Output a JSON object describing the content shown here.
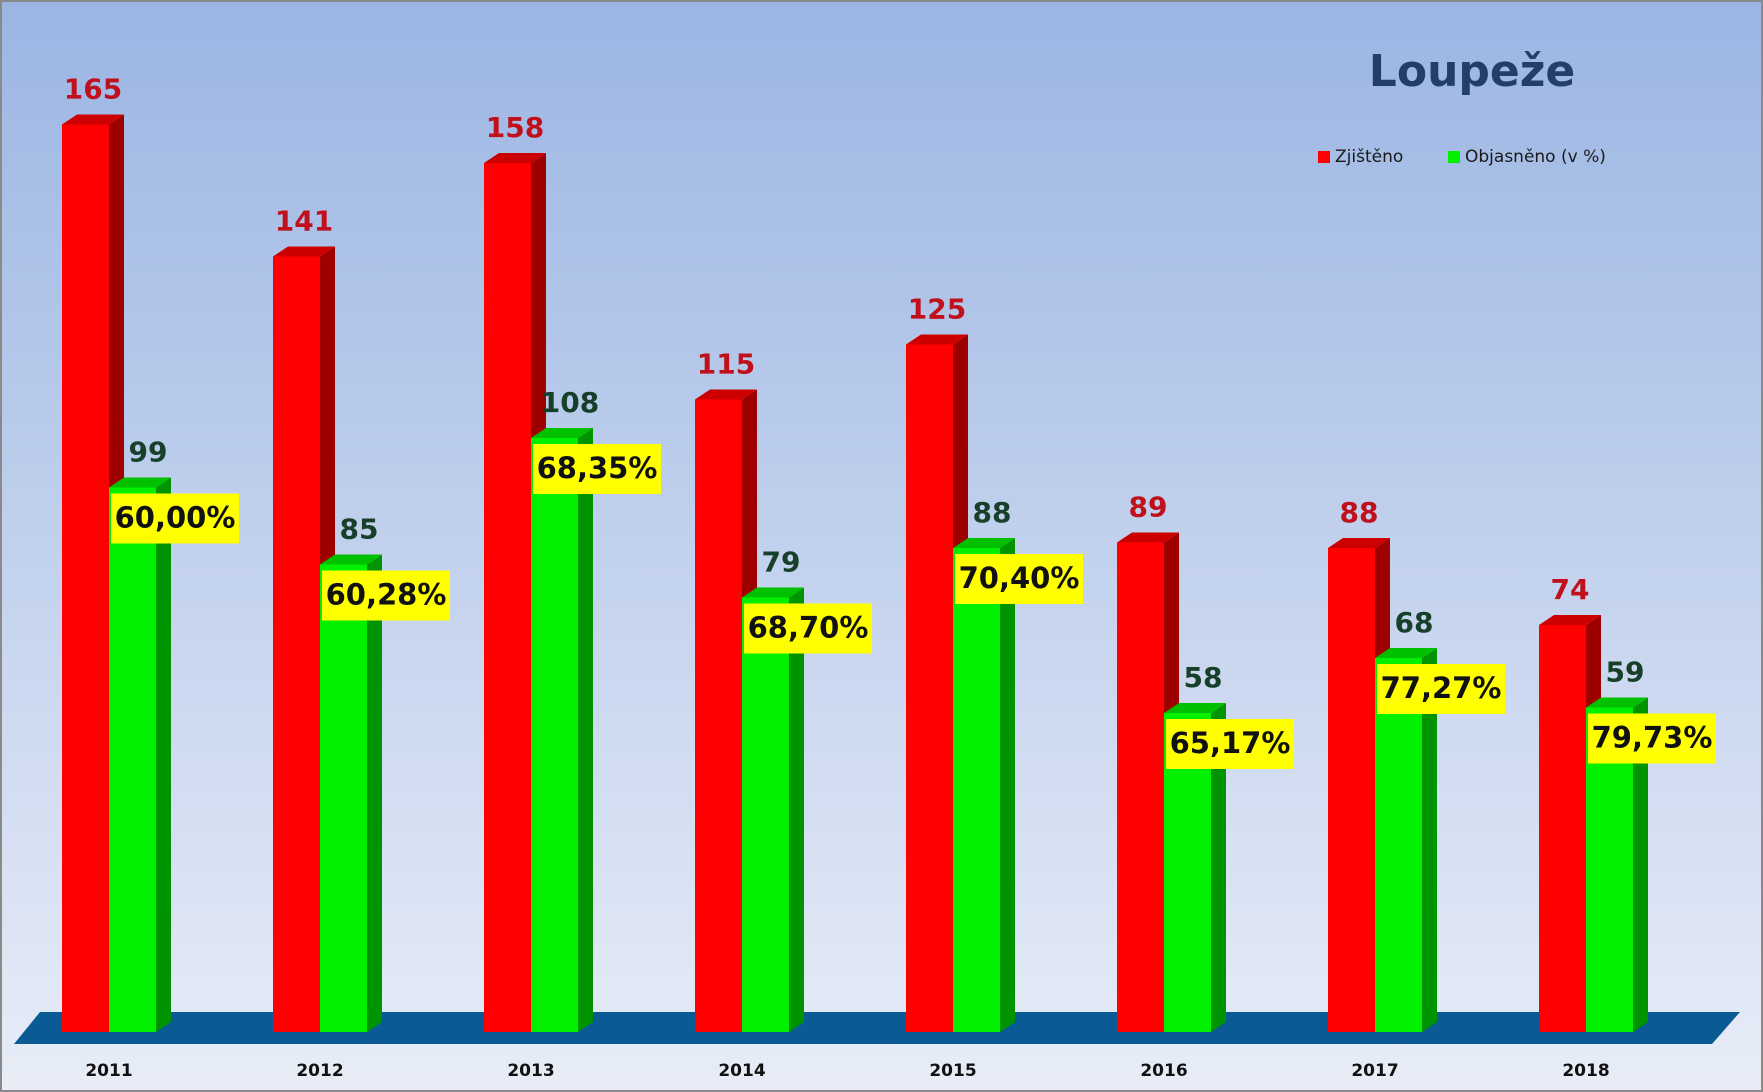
{
  "chart_data": {
    "type": "bar3d",
    "title": "Loupeže",
    "categories": [
      "2011",
      "2012",
      "2013",
      "2014",
      "2015",
      "2016",
      "2017",
      "2018"
    ],
    "series": [
      {
        "name": "Zjištěno",
        "color": "#ff0000",
        "label_color": "#c0101c",
        "values": [
          165,
          141,
          158,
          115,
          125,
          89,
          88,
          74
        ]
      },
      {
        "name": "Objasněno (v %)",
        "color": "#00f000",
        "label_color": "#17402a",
        "values": [
          99,
          85,
          108,
          79,
          88,
          58,
          68,
          59
        ],
        "annotations": [
          "60,00%",
          "60,28%",
          "68,35%",
          "68,70%",
          "70,40%",
          "65,17%",
          "77,27%",
          "79,73%"
        ]
      }
    ],
    "ylim": [
      0,
      180
    ],
    "legend": "top-right",
    "annotation_color": "#ffff00"
  }
}
